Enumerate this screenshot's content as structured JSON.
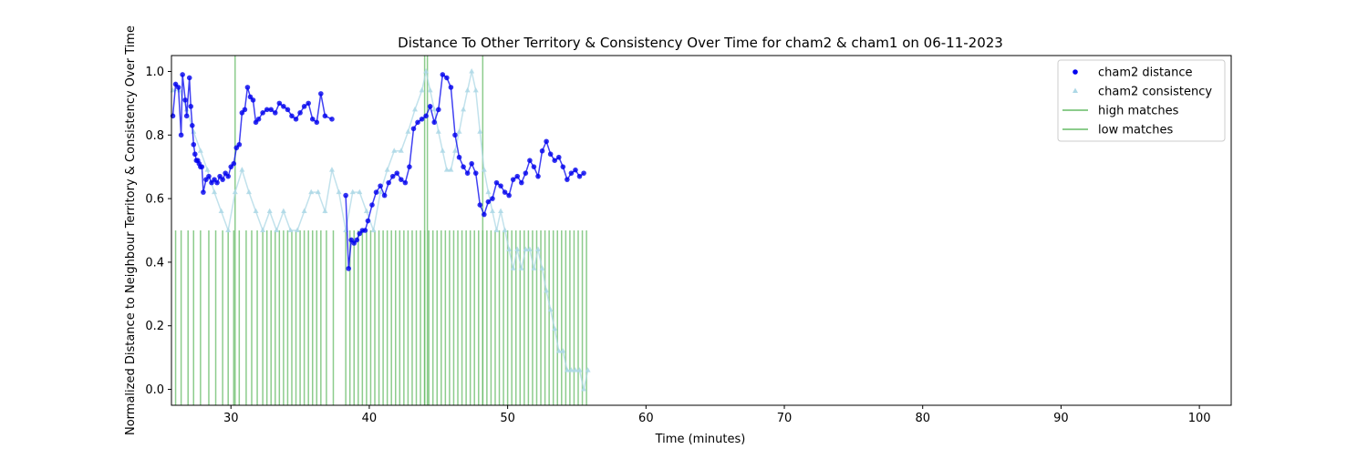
{
  "chart_data": {
    "type": "scatter",
    "title": "Distance To Other Territory & Consistency Over Time for cham2 & cham1 on 06-11-2023",
    "xlabel": "Time (minutes)",
    "ylabel": "Normalized Distance to Neighbour Territory & Consistency Over Time",
    "xlim": [
      25.7,
      102.3
    ],
    "ylim": [
      -0.05,
      1.05
    ],
    "x_ticks": [
      30,
      40,
      50,
      60,
      70,
      80,
      90,
      100
    ],
    "x_tick_labels": [
      "30",
      "40",
      "50",
      "60",
      "70",
      "80",
      "90",
      "100"
    ],
    "y_ticks": [
      0.0,
      0.2,
      0.4,
      0.6,
      0.8,
      1.0
    ],
    "y_tick_labels": [
      "0.0",
      "0.2",
      "0.4",
      "0.6",
      "0.8",
      "1.0"
    ],
    "grid": false,
    "legend_position": "top-right",
    "colors": {
      "distance": "#0000ee",
      "consistency": "#add8e6",
      "matches": "#66bb66"
    },
    "legend": [
      {
        "label": "cham2 distance",
        "marker": "circle",
        "color": "#0000ee"
      },
      {
        "label": "cham2 consistency",
        "marker": "triangle",
        "color": "#add8e6"
      },
      {
        "label": "high matches",
        "marker": "line",
        "color": "#66bb66"
      },
      {
        "label": "low matches",
        "marker": "line",
        "color": "#66bb66"
      }
    ],
    "series": [
      {
        "name": "cham2 distance",
        "x": [
          25.8,
          26.0,
          26.2,
          26.4,
          26.5,
          26.7,
          26.8,
          27.0,
          27.1,
          27.2,
          27.3,
          27.4,
          27.5,
          27.6,
          27.7,
          27.8,
          27.9,
          28.0,
          28.2,
          28.4,
          28.6,
          28.8,
          29.0,
          29.2,
          29.4,
          29.6,
          29.8,
          30.0,
          30.2,
          30.4,
          30.6,
          30.8,
          31.0,
          31.2,
          31.4,
          31.6,
          31.8,
          32.0,
          32.3,
          32.6,
          32.9,
          33.2,
          33.5,
          33.8,
          34.1,
          34.4,
          34.7,
          35.0,
          35.3,
          35.6,
          35.9,
          36.2,
          36.5,
          36.8,
          37.3,
          38.3,
          38.5,
          38.7,
          38.9,
          39.1,
          39.3,
          39.5,
          39.7,
          39.9,
          40.2,
          40.5,
          40.8,
          41.1,
          41.4,
          41.7,
          42.0,
          42.3,
          42.6,
          42.9,
          43.2,
          43.5,
          43.8,
          44.1,
          44.4,
          44.7,
          45.0,
          45.3,
          45.6,
          45.9,
          46.2,
          46.5,
          46.8,
          47.1,
          47.4,
          47.7,
          48.0,
          48.3,
          48.6,
          48.9,
          49.2,
          49.5,
          49.8,
          50.1,
          50.4,
          50.7,
          51.0,
          51.3,
          51.6,
          51.9,
          52.2,
          52.5,
          52.8,
          53.1,
          53.4,
          53.7,
          54.0,
          54.3,
          54.6,
          54.9,
          55.2,
          55.5
        ],
        "y": [
          0.86,
          0.96,
          0.95,
          0.8,
          0.99,
          0.91,
          0.86,
          0.98,
          0.89,
          0.83,
          0.77,
          0.74,
          0.72,
          0.72,
          0.71,
          0.7,
          0.7,
          0.62,
          0.66,
          0.67,
          0.65,
          0.66,
          0.65,
          0.67,
          0.66,
          0.68,
          0.67,
          0.7,
          0.71,
          0.76,
          0.77,
          0.87,
          0.88,
          0.95,
          0.92,
          0.91,
          0.84,
          0.85,
          0.87,
          0.88,
          0.88,
          0.87,
          0.9,
          0.89,
          0.88,
          0.86,
          0.85,
          0.87,
          0.89,
          0.9,
          0.85,
          0.84,
          0.93,
          0.86,
          0.85,
          0.61,
          0.38,
          0.47,
          0.46,
          0.47,
          0.49,
          0.5,
          0.5,
          0.53,
          0.58,
          0.62,
          0.64,
          0.61,
          0.65,
          0.67,
          0.68,
          0.66,
          0.65,
          0.7,
          0.82,
          0.84,
          0.85,
          0.86,
          0.89,
          0.84,
          0.88,
          0.99,
          0.98,
          0.95,
          0.8,
          0.73,
          0.7,
          0.68,
          0.71,
          0.68,
          0.58,
          0.55,
          0.59,
          0.6,
          0.65,
          0.64,
          0.62,
          0.61,
          0.66,
          0.67,
          0.65,
          0.68,
          0.72,
          0.7,
          0.67,
          0.75,
          0.78,
          0.74,
          0.72,
          0.73,
          0.7,
          0.66,
          0.68,
          0.69,
          0.67,
          0.68
        ]
      },
      {
        "name": "cham2 consistency",
        "x": [
          25.8,
          26.3,
          26.8,
          27.3,
          27.8,
          28.3,
          28.8,
          29.3,
          29.8,
          30.3,
          30.8,
          31.3,
          31.8,
          32.3,
          32.8,
          33.3,
          33.8,
          34.3,
          34.8,
          35.3,
          35.8,
          36.3,
          36.8,
          37.3,
          37.8,
          38.3,
          38.8,
          39.3,
          39.8,
          40.3,
          40.8,
          41.3,
          41.8,
          42.3,
          42.8,
          43.3,
          43.8,
          44.1,
          44.4,
          44.7,
          45.0,
          45.3,
          45.6,
          45.9,
          46.2,
          46.5,
          46.8,
          47.1,
          47.4,
          47.7,
          48.0,
          48.3,
          48.6,
          48.9,
          49.2,
          49.5,
          49.8,
          50.1,
          50.4,
          50.7,
          51.0,
          51.3,
          51.6,
          51.9,
          52.2,
          52.5,
          52.8,
          53.1,
          53.4,
          53.7,
          54.0,
          54.3,
          54.6,
          54.9,
          55.2,
          55.5,
          55.8
        ],
        "y": [
          0.94,
          0.94,
          0.88,
          0.81,
          0.75,
          0.69,
          0.62,
          0.56,
          0.5,
          0.62,
          0.69,
          0.62,
          0.56,
          0.5,
          0.56,
          0.5,
          0.56,
          0.5,
          0.5,
          0.56,
          0.62,
          0.62,
          0.56,
          0.69,
          0.62,
          0.5,
          0.62,
          0.62,
          0.56,
          0.5,
          0.62,
          0.69,
          0.75,
          0.75,
          0.81,
          0.88,
          0.94,
          1.0,
          0.94,
          0.88,
          0.81,
          0.75,
          0.69,
          0.69,
          0.75,
          0.81,
          0.88,
          0.94,
          1.0,
          0.94,
          0.81,
          0.69,
          0.62,
          0.56,
          0.5,
          0.56,
          0.5,
          0.44,
          0.38,
          0.44,
          0.38,
          0.44,
          0.44,
          0.38,
          0.44,
          0.38,
          0.31,
          0.25,
          0.19,
          0.12,
          0.12,
          0.06,
          0.06,
          0.06,
          0.06,
          0.0,
          0.06
        ]
      }
    ],
    "high_matches": [
      30.3,
      44.0,
      44.2,
      48.2
    ],
    "low_matches": [
      26.0,
      26.4,
      26.9,
      27.3,
      27.8,
      28.4,
      28.9,
      29.4,
      29.8,
      30.2,
      30.6,
      31.1,
      31.5,
      31.9,
      32.3,
      32.6,
      32.9,
      33.2,
      33.5,
      33.8,
      34.1,
      34.4,
      34.7,
      35.0,
      35.3,
      35.6,
      35.9,
      36.2,
      36.5,
      36.9,
      37.4,
      38.3,
      38.6,
      38.9,
      39.2,
      39.5,
      39.8,
      40.1,
      40.4,
      40.7,
      41.0,
      41.3,
      41.6,
      41.9,
      42.2,
      42.5,
      42.8,
      43.1,
      43.4,
      43.7,
      44.0,
      44.3,
      44.6,
      44.9,
      45.2,
      45.5,
      45.8,
      46.1,
      46.4,
      46.7,
      47.0,
      47.3,
      47.6,
      47.9,
      48.2,
      48.5,
      48.8,
      49.1,
      49.4,
      49.7,
      50.0,
      50.3,
      50.6,
      50.9,
      51.2,
      51.5,
      51.8,
      52.1,
      52.4,
      52.7,
      53.0,
      53.3,
      53.6,
      53.9,
      54.2,
      54.5,
      54.8,
      55.1,
      55.4,
      55.7
    ]
  }
}
